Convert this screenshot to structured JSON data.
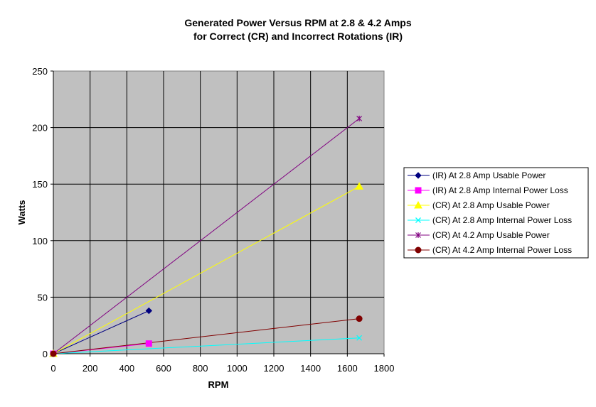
{
  "chart_data": {
    "type": "line",
    "title_lines": [
      "Generated Power Versus RPM at 2.8 & 4.2 Amps",
      "for Correct (CR) and Incorrect Rotations (IR)"
    ],
    "xlabel": "RPM",
    "ylabel": "Watts",
    "xlim": [
      0,
      1800
    ],
    "ylim": [
      0,
      250
    ],
    "x_ticks": [
      0,
      200,
      400,
      600,
      800,
      1000,
      1200,
      1400,
      1600,
      1800
    ],
    "y_ticks": [
      0,
      50,
      100,
      150,
      200,
      250
    ],
    "grid": true,
    "plot_background": "#C0C0C0",
    "legend_position": "right",
    "series": [
      {
        "name": "(IR) At 2.8 Amp Usable Power",
        "color": "#000080",
        "marker": "diamond",
        "points": [
          [
            0,
            0
          ],
          [
            520,
            38
          ]
        ]
      },
      {
        "name": "(IR) At 2.8 Amp Internal Power Loss",
        "color": "#FF00FF",
        "marker": "square",
        "points": [
          [
            0,
            0
          ],
          [
            520,
            9
          ]
        ]
      },
      {
        "name": "(CR) At 2.8 Amp Usable Power",
        "color": "#FFFF00",
        "marker": "triangle",
        "points": [
          [
            0,
            0
          ],
          [
            1665,
            148
          ]
        ]
      },
      {
        "name": "(CR) At 2.8 Amp Internal Power Loss",
        "color": "#00FFFF",
        "marker": "x",
        "points": [
          [
            0,
            0
          ],
          [
            1665,
            14
          ]
        ]
      },
      {
        "name": "(CR) At 4.2 Amp Usable Power",
        "color": "#800080",
        "marker": "star",
        "points": [
          [
            0,
            0
          ],
          [
            1665,
            208
          ]
        ]
      },
      {
        "name": "(CR) At 4.2 Amp Internal Power Loss",
        "color": "#800000",
        "marker": "circle",
        "points": [
          [
            0,
            0
          ],
          [
            1665,
            31
          ]
        ]
      }
    ]
  }
}
